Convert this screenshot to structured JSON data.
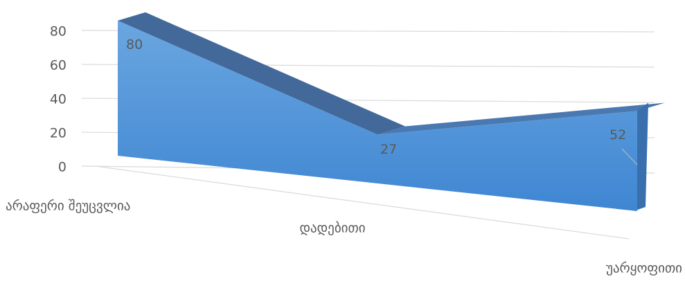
{
  "chart_data": {
    "type": "area3d",
    "categories": [
      "არაფერი შეუცვლია",
      "დადებითი",
      "უარყოფითი"
    ],
    "values": [
      80,
      27,
      52
    ],
    "color": "#5b9bd5",
    "ylim": [
      0,
      80
    ],
    "yticks": [
      0,
      20,
      40,
      60,
      80
    ],
    "grid": true
  }
}
